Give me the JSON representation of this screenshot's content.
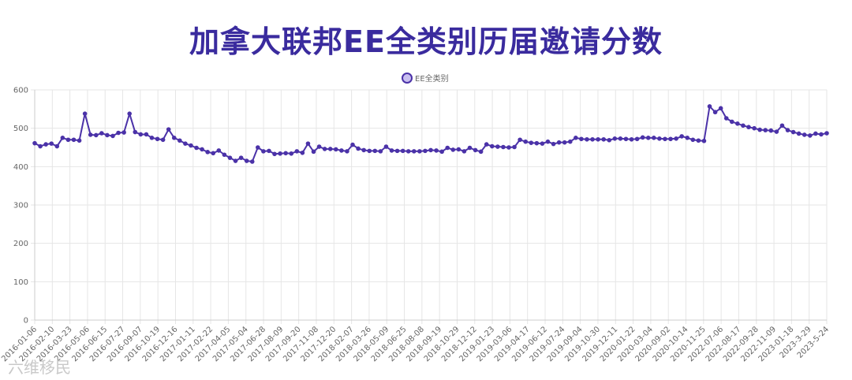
{
  "chart_data": {
    "type": "line",
    "title": "加拿大联邦EE全类别历届邀请分数",
    "legend": {
      "label": "EE全类别",
      "placement": "top-center"
    },
    "colors": {
      "line": "#4b32a8",
      "point_fill": "#c9bff0",
      "grid": "#e6e6e6",
      "title": "#3a2b9e"
    },
    "grid": true,
    "ylim": [
      0,
      600
    ],
    "yticks": [
      0,
      100,
      200,
      300,
      400,
      500,
      600
    ],
    "xtick_labels": [
      "2016-01-06",
      "2016-02-10",
      "2016-03-23",
      "2016-05-06",
      "2016-06-15",
      "2016-07-27",
      "2016-09-07",
      "2016-10-19",
      "2016-12-16",
      "2017-01-11",
      "2017-02-22",
      "2017-04-05",
      "2017-05-04",
      "2017-06-28",
      "2017-08-09",
      "2017-09-20",
      "2017-11-08",
      "2017-12-20",
      "2018-02-07",
      "2018-03-26",
      "2018-05-09",
      "2018-06-25",
      "2018-08-08",
      "2018-09-19",
      "2018-10-29",
      "2018-12-12",
      "2019-01-23",
      "2019-03-06",
      "2019-04-17",
      "2019-06-12",
      "2019-07-24",
      "2019-09-04",
      "2019-10-30",
      "2019-12-11",
      "2020-01-22",
      "2020-03-04",
      "2020-09-02",
      "2020-10-14",
      "2020-11-25",
      "2022-07-06",
      "2022-08-17",
      "2022-09-28",
      "2022-11-09",
      "2023-01-18",
      "2023-3-29",
      "2023-5-24"
    ],
    "series": [
      {
        "name": "EE全类别",
        "values": [
          461,
          453,
          458,
          460,
          453,
          475,
          470,
          470,
          468,
          538,
          483,
          482,
          487,
          482,
          480,
          488,
          489,
          538,
          490,
          484,
          484,
          475,
          472,
          470,
          497,
          475,
          468,
          460,
          455,
          449,
          445,
          438,
          435,
          442,
          431,
          423,
          415,
          423,
          415,
          413,
          450,
          440,
          441,
          433,
          434,
          435,
          434,
          440,
          436,
          460,
          439,
          452,
          446,
          446,
          445,
          442,
          440,
          457,
          447,
          443,
          441,
          441,
          440,
          452,
          442,
          441,
          441,
          440,
          440,
          440,
          441,
          443,
          442,
          439,
          449,
          444,
          445,
          440,
          449,
          443,
          439,
          458,
          453,
          452,
          451,
          450,
          451,
          470,
          465,
          462,
          461,
          460,
          465,
          459,
          463,
          463,
          465,
          475,
          472,
          471,
          471,
          471,
          471,
          469,
          473,
          473,
          472,
          471,
          472,
          476,
          475,
          475,
          473,
          472,
          472,
          473,
          479,
          475,
          470,
          468,
          467,
          557,
          542,
          552,
          526,
          517,
          512,
          507,
          503,
          500,
          496,
          495,
          494,
          491,
          507,
          495,
          490,
          486,
          483,
          481,
          486,
          484,
          487
        ]
      }
    ]
  },
  "watermark": "六维移民"
}
